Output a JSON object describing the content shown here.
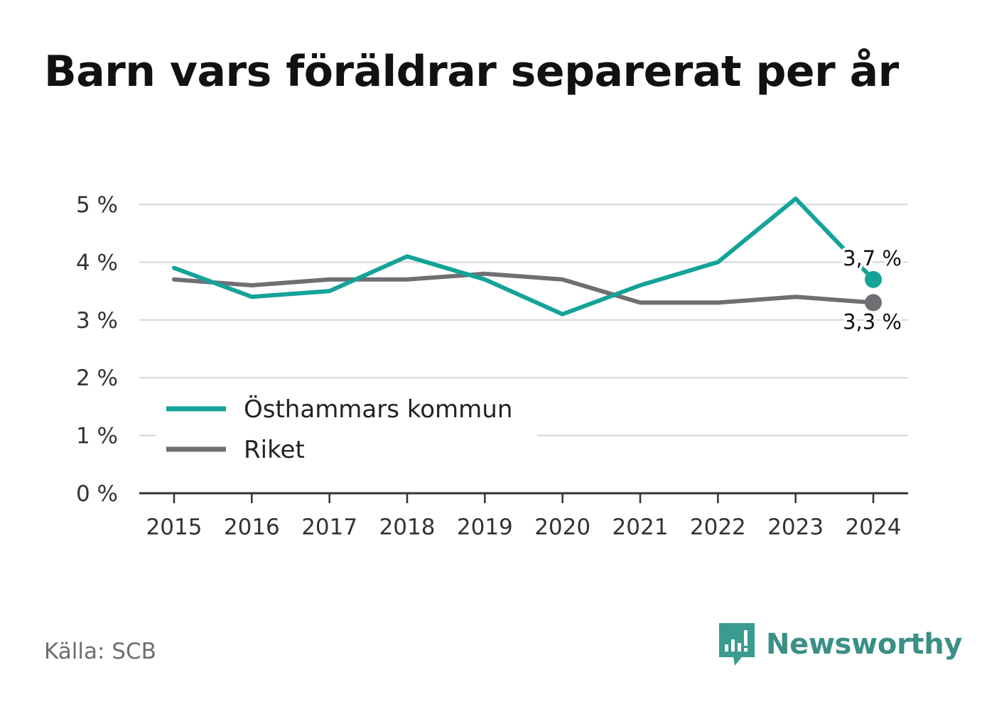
{
  "title": "Barn vars föräldrar separerat per år",
  "source": "Källa: SCB",
  "brand": {
    "name": "Newsworthy",
    "icon": "bar-chart-speech-icon",
    "color": "#3a9b8f"
  },
  "chart_data": {
    "type": "line",
    "x": [
      "2015",
      "2016",
      "2017",
      "2018",
      "2019",
      "2020",
      "2021",
      "2022",
      "2023",
      "2024"
    ],
    "series": [
      {
        "name": "Östhammars kommun",
        "color": "#14a398",
        "values": [
          3.9,
          3.4,
          3.5,
          4.1,
          3.7,
          3.1,
          3.6,
          4.0,
          5.1,
          3.7
        ],
        "end_label": "3,7 %"
      },
      {
        "name": "Riket",
        "color": "#6f6e73",
        "values": [
          3.7,
          3.6,
          3.7,
          3.7,
          3.8,
          3.7,
          3.3,
          3.3,
          3.4,
          3.3
        ],
        "end_label": "3,3 %"
      }
    ],
    "yticks": [
      {
        "value": 0,
        "label": "0 %"
      },
      {
        "value": 1,
        "label": "1 %"
      },
      {
        "value": 2,
        "label": "2 %"
      },
      {
        "value": 3,
        "label": "3 %"
      },
      {
        "value": 4,
        "label": "4 %"
      },
      {
        "value": 5,
        "label": "5 %"
      }
    ],
    "ylim": [
      0,
      5
    ],
    "grid": true,
    "legend": "bottom-left"
  }
}
